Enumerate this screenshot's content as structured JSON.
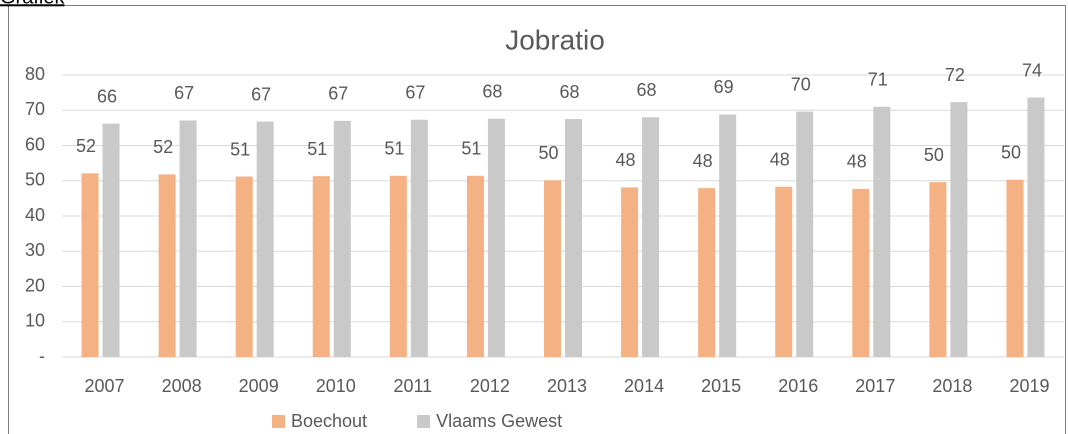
{
  "heading": "Grafiek",
  "chart_data": {
    "type": "bar",
    "title": "Jobratio",
    "categories": [
      "2007",
      "2008",
      "2009",
      "2010",
      "2011",
      "2012",
      "2013",
      "2014",
      "2015",
      "2016",
      "2017",
      "2018",
      "2019"
    ],
    "series": [
      {
        "name": "Boechout",
        "color": "#f4b183",
        "values": [
          52.1,
          51.8,
          51.2,
          51.3,
          51.4,
          51.4,
          50.1,
          48.1,
          47.9,
          48.3,
          47.7,
          49.6,
          50.3
        ],
        "value_labels": [
          "52",
          "52",
          "51",
          "51",
          "51",
          "51",
          "50",
          "48",
          "48",
          "48",
          "48",
          "50",
          "50"
        ]
      },
      {
        "name": "Vlaams Gewest",
        "color": "#c9c9c9",
        "values": [
          66.2,
          67.1,
          66.8,
          67.0,
          67.3,
          67.6,
          67.5,
          68.0,
          68.8,
          69.6,
          71.0,
          72.3,
          73.6
        ],
        "value_labels": [
          "66",
          "67",
          "67",
          "67",
          "67",
          "68",
          "68",
          "68",
          "69",
          "70",
          "71",
          "72",
          "74"
        ]
      }
    ],
    "ylim": [
      0,
      80
    ],
    "yticks": [
      {
        "value": 0,
        "label": "-"
      },
      10,
      20,
      30,
      40,
      50,
      60,
      70,
      80
    ],
    "grid": true,
    "legend": "bottom"
  }
}
